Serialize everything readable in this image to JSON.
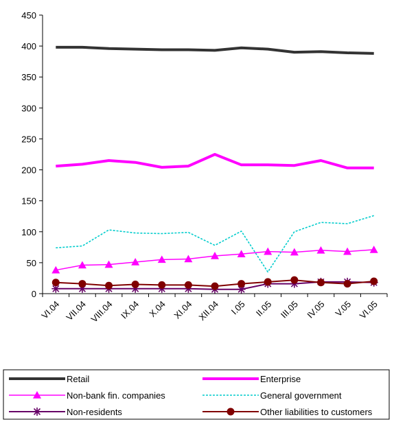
{
  "chart_data": {
    "type": "line",
    "categories": [
      "VI.04",
      "VII.04",
      "VIII.04",
      "IX.04",
      "X.04",
      "XI.04",
      "XII.04",
      "I.05",
      "II.05",
      "III.05",
      "IV.05",
      "V.05",
      "VI.05"
    ],
    "ylim": [
      0,
      450
    ],
    "yticks": [
      0,
      50,
      100,
      150,
      200,
      250,
      300,
      350,
      400,
      450
    ],
    "grid": false,
    "legend_position": "bottom",
    "series": [
      {
        "name": "Retail",
        "color": "#333333",
        "marker": "none",
        "style": "thick",
        "values": [
          398,
          398,
          396,
          395,
          394,
          394,
          393,
          397,
          395,
          390,
          391,
          389,
          388
        ]
      },
      {
        "name": "Enterprise",
        "color": "#ff00ff",
        "marker": "none",
        "style": "thick",
        "values": [
          206,
          209,
          215,
          212,
          204,
          206,
          225,
          208,
          208,
          207,
          215,
          203,
          203
        ]
      },
      {
        "name": "Non-bank fin. companies",
        "color": "#ff00ff",
        "marker": "triangle",
        "style": "thin",
        "values": [
          38,
          46,
          47,
          51,
          55,
          56,
          61,
          64,
          68,
          67,
          70,
          68,
          71
        ]
      },
      {
        "name": "General government",
        "color": "#00cccc",
        "marker": "none",
        "style": "dotted",
        "values": [
          74,
          77,
          103,
          98,
          97,
          99,
          78,
          101,
          35,
          100,
          115,
          113,
          126
        ]
      },
      {
        "name": "Non-residents",
        "color": "#660066",
        "marker": "star",
        "style": "medium",
        "values": [
          8,
          8,
          8,
          8,
          8,
          8,
          7,
          7,
          16,
          16,
          19,
          19,
          18
        ]
      },
      {
        "name": "Other liabilities to customers",
        "color": "#800000",
        "marker": "circle",
        "style": "medium",
        "values": [
          18,
          16,
          13,
          15,
          14,
          14,
          12,
          16,
          19,
          22,
          18,
          16,
          20
        ]
      }
    ]
  }
}
